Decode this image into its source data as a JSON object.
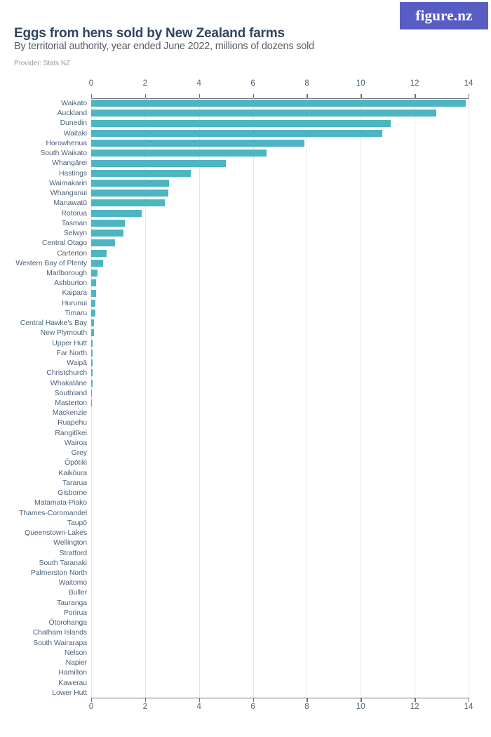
{
  "header": {
    "title": "Eggs from hens sold by New Zealand farms",
    "subtitle": "By territorial authority, year ended June 2022, millions of dozens sold",
    "provider": "Provider: Stats NZ",
    "logo_text": "figure.nz"
  },
  "colors": {
    "bar": "#4db5c2",
    "logo_background": "#585dc4",
    "title_text": "#31455f",
    "category_label_text": "#4e6378",
    "gridline": "#e4e6e8",
    "axis_line": "#6d7278"
  },
  "chart_data": {
    "type": "bar",
    "orientation": "horizontal",
    "title": "Eggs from hens sold by New Zealand farms",
    "subtitle": "By territorial authority, year ended June 2022, millions of dozens sold",
    "xlabel": "",
    "ylabel": "",
    "xlim": [
      0,
      14
    ],
    "x_ticks": [
      0,
      2,
      4,
      6,
      8,
      10,
      12,
      14
    ],
    "grid": true,
    "axis_labels_positions": [
      "top",
      "bottom"
    ],
    "units": "millions of dozens sold",
    "categories": [
      "Waikato",
      "Auckland",
      "Dunedin",
      "Waitaki",
      "Horowhenua",
      "South Waikato",
      "Whangārei",
      "Hastings",
      "Waimakariri",
      "Whanganui",
      "Manawatū",
      "Rotorua",
      "Tasman",
      "Selwyn",
      "Central Otago",
      "Carterton",
      "Western Bay of Plenty",
      "Marlborough",
      "Ashburton",
      "Kaipara",
      "Hurunui",
      "Timaru",
      "Central Hawke's Bay",
      "New Plymouth",
      "Upper Hutt",
      "Far North",
      "Waipā",
      "Christchurch",
      "Whakatāne",
      "Southland",
      "Masterton",
      "Mackenzie",
      "Ruapehu",
      "Rangitīkei",
      "Wairoa",
      "Grey",
      "Ōpōtiki",
      "Kaikōura",
      "Tararua",
      "Gisborne",
      "Matamata-Piako",
      "Thames-Coromandel",
      "Taupō",
      "Queenstown-Lakes",
      "Wellington",
      "Stratford",
      "South Taranaki",
      "Palmerston North",
      "Waitomo",
      "Buller",
      "Tauranga",
      "Porirua",
      "Ōtorohanga",
      "Chatham Islands",
      "South Wairarapa",
      "Nelson",
      "Napier",
      "Hamilton",
      "Kawerau",
      "Lower Hutt"
    ],
    "values": [
      13.9,
      12.8,
      11.1,
      10.8,
      7.9,
      6.5,
      5.0,
      3.7,
      2.9,
      2.87,
      2.73,
      1.87,
      1.24,
      1.21,
      0.88,
      0.57,
      0.45,
      0.24,
      0.19,
      0.17,
      0.16,
      0.15,
      0.11,
      0.11,
      0.06,
      0.05,
      0.05,
      0.05,
      0.04,
      0.02,
      0.01,
      0,
      0,
      0,
      0,
      0,
      0,
      0,
      0,
      0,
      0,
      0,
      0,
      0,
      0,
      0,
      0,
      0,
      0,
      0,
      0,
      0,
      0,
      0,
      0,
      0,
      0,
      0,
      0,
      0
    ]
  }
}
